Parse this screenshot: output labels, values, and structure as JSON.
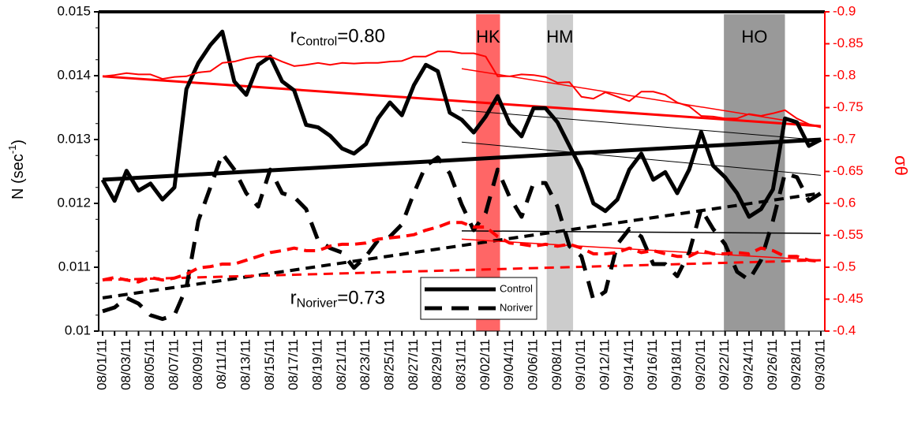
{
  "chart_data": {
    "type": "line",
    "ylabel": {
      "text": "N (sec",
      "sup": "-1",
      "after": ")"
    },
    "y2label": "σθ",
    "categories": [
      "08/01/11",
      null,
      "08/03/11",
      null,
      "08/05/11",
      null,
      "08/07/11",
      null,
      "08/09/11",
      null,
      "08/11/11",
      null,
      "08/13/11",
      null,
      "08/15/11",
      null,
      "08/17/11",
      null,
      "08/19/11",
      null,
      "08/21/11",
      null,
      "08/23/11",
      null,
      "08/25/11",
      null,
      "08/27/11",
      null,
      "08/29/11",
      null,
      "08/31/11",
      null,
      "09/02/11",
      null,
      "09/04/11",
      null,
      "09/06/11",
      null,
      "09/08/11",
      null,
      "09/10/11",
      null,
      "09/12/11",
      null,
      "09/14/11",
      null,
      "09/16/11",
      null,
      "09/18/11",
      null,
      "09/20/11",
      null,
      "09/22/11",
      null,
      "09/24/11",
      null,
      "09/26/11",
      null,
      "09/28/11",
      null,
      "09/30/11"
    ],
    "ylim": [
      0.01,
      0.015
    ],
    "yticks": [
      0.01,
      0.011,
      0.012,
      0.013,
      0.014,
      0.015
    ],
    "y2lim": [
      -0.4,
      -0.9
    ],
    "y2ticks": [
      -0.4,
      -0.45,
      -0.5,
      -0.55,
      -0.6,
      -0.65,
      -0.7,
      -0.75,
      -0.8,
      -0.85,
      -0.9
    ],
    "legend": "bottom-center",
    "series": [
      {
        "name": "Control",
        "color": "#000000",
        "dash": false,
        "values": [
          0.01237,
          0.01204,
          0.01251,
          0.0122,
          0.01231,
          0.01206,
          0.01225,
          0.01379,
          0.0142,
          0.01448,
          0.01469,
          0.01391,
          0.0137,
          0.01417,
          0.0143,
          0.01391,
          0.01377,
          0.01323,
          0.01319,
          0.01306,
          0.01286,
          0.01278,
          0.01293,
          0.01333,
          0.01358,
          0.01338,
          0.01385,
          0.01417,
          0.01407,
          0.01342,
          0.01331,
          0.01311,
          0.01336,
          0.01368,
          0.01325,
          0.01305,
          0.01349,
          0.01349,
          0.01327,
          0.0129,
          0.01253,
          0.012,
          0.01188,
          0.01206,
          0.01253,
          0.01278,
          0.01237,
          0.01249,
          0.01216,
          0.01253,
          0.01312,
          0.01259,
          0.01241,
          0.01216,
          0.01179,
          0.01191,
          0.01222,
          0.01333,
          0.01327,
          0.0129,
          0.013
        ]
      },
      {
        "name": "Noriver",
        "color": "#000000",
        "dash": true,
        "values": [
          0.01031,
          0.01037,
          0.01052,
          0.01043,
          0.01025,
          0.01019,
          0.01025,
          0.01068,
          0.01173,
          0.01225,
          0.01278,
          0.01253,
          0.01216,
          0.01195,
          0.01253,
          0.01216,
          0.0121,
          0.01191,
          0.01142,
          0.0113,
          0.01123,
          0.01099,
          0.01117,
          0.01142,
          0.01148,
          0.01167,
          0.01216,
          0.01259,
          0.01272,
          0.01247,
          0.01198,
          0.01158,
          0.01185,
          0.01253,
          0.0121,
          0.01179,
          0.01232,
          0.01232,
          0.01195,
          0.01133,
          0.01117,
          0.01049,
          0.01062,
          0.01136,
          0.0116,
          0.01148,
          0.01105,
          0.01105,
          0.01086,
          0.01123,
          0.01191,
          0.0116,
          0.01136,
          0.01093,
          0.0108,
          0.01111,
          0.01173,
          0.01247,
          0.01241,
          0.01204,
          0.01216
        ]
      },
      {
        "color": "#ff0000",
        "dash": false,
        "axis": "y2",
        "values": [
          -0.799,
          -0.801,
          -0.804,
          -0.802,
          -0.802,
          -0.795,
          -0.798,
          -0.799,
          -0.805,
          -0.807,
          -0.82,
          -0.822,
          -0.827,
          -0.83,
          -0.83,
          -0.822,
          -0.815,
          -0.817,
          -0.82,
          -0.817,
          -0.82,
          -0.819,
          -0.82,
          -0.82,
          -0.822,
          -0.823,
          -0.83,
          -0.83,
          -0.838,
          -0.838,
          -0.835,
          -0.835,
          -0.83,
          -0.799,
          -0.799,
          -0.802,
          -0.801,
          -0.798,
          -0.789,
          -0.79,
          -0.767,
          -0.764,
          -0.774,
          -0.767,
          -0.76,
          -0.775,
          -0.775,
          -0.77,
          -0.758,
          -0.752,
          -0.737,
          -0.736,
          -0.733,
          -0.733,
          -0.74,
          -0.737,
          -0.741,
          -0.746,
          -0.733,
          -0.724,
          -0.719
        ]
      },
      {
        "color": "#ff0000",
        "dash": true,
        "axis": "y2",
        "values": [
          -0.48,
          -0.484,
          -0.48,
          -0.477,
          -0.484,
          -0.48,
          -0.483,
          -0.489,
          -0.499,
          -0.501,
          -0.505,
          -0.505,
          -0.511,
          -0.517,
          -0.523,
          -0.526,
          -0.53,
          -0.526,
          -0.526,
          -0.533,
          -0.536,
          -0.536,
          -0.538,
          -0.544,
          -0.546,
          -0.548,
          -0.551,
          -0.558,
          -0.563,
          -0.57,
          -0.57,
          -0.563,
          -0.563,
          -0.548,
          -0.538,
          -0.536,
          -0.533,
          -0.536,
          -0.533,
          -0.536,
          -0.53,
          -0.521,
          -0.521,
          -0.523,
          -0.53,
          -0.523,
          -0.526,
          -0.521,
          -0.517,
          -0.517,
          -0.526,
          -0.521,
          -0.521,
          -0.523,
          -0.521,
          -0.53,
          -0.526,
          -0.517,
          -0.517,
          -0.511,
          -0.509
        ]
      }
    ],
    "trends": [
      {
        "color": "#000000",
        "width": 5,
        "dash": false,
        "x": [
          "08/01/11",
          "09/30/11"
        ],
        "values": [
          0.01237,
          0.013
        ]
      },
      {
        "color": "#000000",
        "width": 4,
        "dash": true,
        "x": [
          "08/01/11",
          "09/30/11"
        ],
        "values": [
          0.01052,
          0.01216
        ]
      },
      {
        "color": "#ff0000",
        "width": 3,
        "dash": false,
        "axis": "y2",
        "x": [
          "08/01/11",
          "09/30/11"
        ],
        "values": [
          -0.799,
          -0.721
        ]
      },
      {
        "color": "#ff0000",
        "width": 3,
        "dash": true,
        "axis": "y2",
        "x": [
          "08/01/11",
          "09/30/11"
        ],
        "values": [
          -0.48,
          -0.511
        ]
      },
      {
        "color": "#000000",
        "width": 1,
        "dash": false,
        "x": [
          "08/31/11",
          "09/30/11"
        ],
        "values": [
          0.01346,
          0.01299
        ]
      },
      {
        "color": "#000000",
        "width": 1,
        "dash": false,
        "x": [
          "08/31/11",
          "09/30/11"
        ],
        "values": [
          0.01296,
          0.01244
        ]
      },
      {
        "color": "#000000",
        "width": 1.5,
        "dash": false,
        "x": [
          "08/31/11",
          "09/30/11"
        ],
        "values": [
          0.01157,
          0.01153
        ]
      },
      {
        "color": "#ff0000",
        "width": 1.5,
        "dash": false,
        "axis": "y2",
        "x": [
          "08/31/11",
          "09/30/11"
        ],
        "values": [
          -0.811,
          -0.721
        ]
      },
      {
        "color": "#ff0000",
        "width": 1.5,
        "dash": false,
        "axis": "y2",
        "x": [
          "08/31/11",
          "09/30/11"
        ],
        "values": [
          -0.544,
          -0.511
        ]
      }
    ],
    "spans": [
      {
        "label": "HK",
        "color": "#ff6666",
        "xrange": [
          31.2,
          33.2
        ]
      },
      {
        "label": "HM",
        "color": "#cccccc",
        "xrange": [
          37.1,
          39.3
        ]
      },
      {
        "label": "HO",
        "color": "#999999",
        "xrange": [
          51.9,
          57.0
        ]
      }
    ],
    "annotations": [
      {
        "text": "r",
        "sub": "Control",
        "value": "=0.80",
        "at": "08/17/11",
        "y": 0.0146
      },
      {
        "text": "r",
        "sub": "Noriver",
        "value": "=0.73",
        "at": "08/17/11",
        "y": 0.0105
      }
    ]
  }
}
